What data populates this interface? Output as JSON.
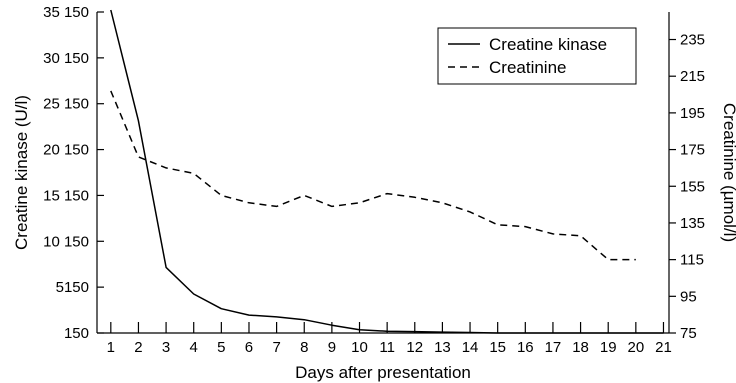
{
  "chart_data": {
    "type": "line",
    "x": {
      "label": "Days after presentation",
      "values": [
        1,
        2,
        3,
        4,
        5,
        6,
        7,
        8,
        9,
        10,
        11,
        12,
        13,
        14,
        15,
        16,
        17,
        18,
        19,
        20,
        21
      ],
      "range": [
        0.5,
        21.2
      ]
    },
    "y_left": {
      "label": "Creatine kinase (U/l)",
      "range": [
        150,
        35150
      ],
      "ticks": [
        150,
        5150,
        10150,
        15150,
        20150,
        25150,
        30150,
        35150
      ],
      "tick_labels": [
        "150",
        "5150",
        "10 150",
        "15 150",
        "20 150",
        "25 150",
        "30 150",
        "35 150"
      ]
    },
    "y_right": {
      "label": "Creatinine (µmol/l)",
      "range": [
        75,
        250
      ],
      "ticks": [
        75,
        95,
        115,
        135,
        155,
        175,
        195,
        215,
        235
      ],
      "tick_labels": [
        "75",
        "95",
        "115",
        "135",
        "155",
        "175",
        "195",
        "215",
        "235"
      ]
    },
    "series": [
      {
        "name": "Creatine kinase",
        "axis": "left",
        "style": "solid",
        "color": "#000000",
        "x": [
          1,
          2,
          3,
          4,
          5,
          6,
          7,
          8,
          9,
          10,
          11,
          12,
          13,
          14,
          15,
          16,
          17,
          18,
          19,
          20,
          21
        ],
        "values": [
          35500,
          23300,
          7300,
          4400,
          2800,
          2100,
          1900,
          1600,
          1000,
          500,
          350,
          300,
          250,
          200,
          150,
          150,
          150,
          150,
          150,
          150,
          150
        ]
      },
      {
        "name": "Creatinine",
        "axis": "right",
        "style": "dashed",
        "color": "#000000",
        "x": [
          1,
          2,
          3,
          4,
          5,
          6,
          7,
          8,
          9,
          10,
          11,
          12,
          13,
          14,
          15,
          16,
          17,
          18,
          19,
          20
        ],
        "values": [
          207,
          171,
          165,
          162,
          150,
          146,
          144,
          150,
          144,
          146,
          151,
          149,
          146,
          141,
          134,
          133,
          129,
          128,
          115,
          115
        ]
      }
    ],
    "legend": {
      "position": "top-right",
      "entries": [
        "Creatine kinase",
        "Creatinine"
      ]
    },
    "grid": false
  }
}
